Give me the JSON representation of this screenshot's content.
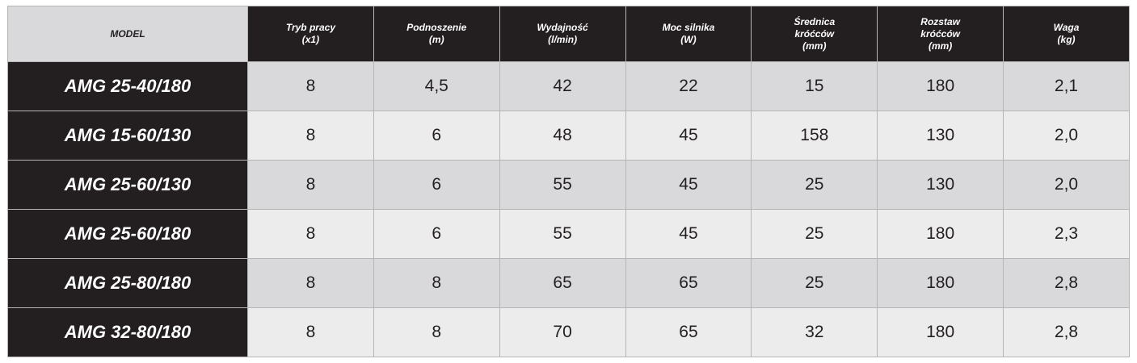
{
  "headers": [
    [
      "MODEL"
    ],
    [
      "Tryb pracy",
      "(x1)"
    ],
    [
      "Podnoszenie",
      "(m)"
    ],
    [
      "Wydajność",
      "(l/min)"
    ],
    [
      "Moc silnika",
      "(W)"
    ],
    [
      "Średnica",
      "króćców",
      "(mm)"
    ],
    [
      "Rozstaw",
      "króćców",
      "(mm)"
    ],
    [
      "Waga",
      "(kg)"
    ]
  ],
  "rows": [
    [
      "AMG 25-40/180",
      "8",
      "4,5",
      "42",
      "22",
      "15",
      "180",
      "2,1"
    ],
    [
      "AMG 15-60/130",
      "8",
      "6",
      "48",
      "45",
      "158",
      "130",
      "2,0"
    ],
    [
      "AMG 25-60/130",
      "8",
      "6",
      "55",
      "45",
      "25",
      "130",
      "2,0"
    ],
    [
      "AMG 25-60/180",
      "8",
      "6",
      "55",
      "45",
      "25",
      "180",
      "2,3"
    ],
    [
      "AMG 25-80/180",
      "8",
      "8",
      "65",
      "65",
      "25",
      "180",
      "2,8"
    ],
    [
      "AMG 32-80/180",
      "8",
      "8",
      "70",
      "65",
      "32",
      "180",
      "2,8"
    ]
  ],
  "colors": {
    "dark": "#231f20",
    "row_odd": "#d9d9db",
    "row_even": "#ececec"
  }
}
